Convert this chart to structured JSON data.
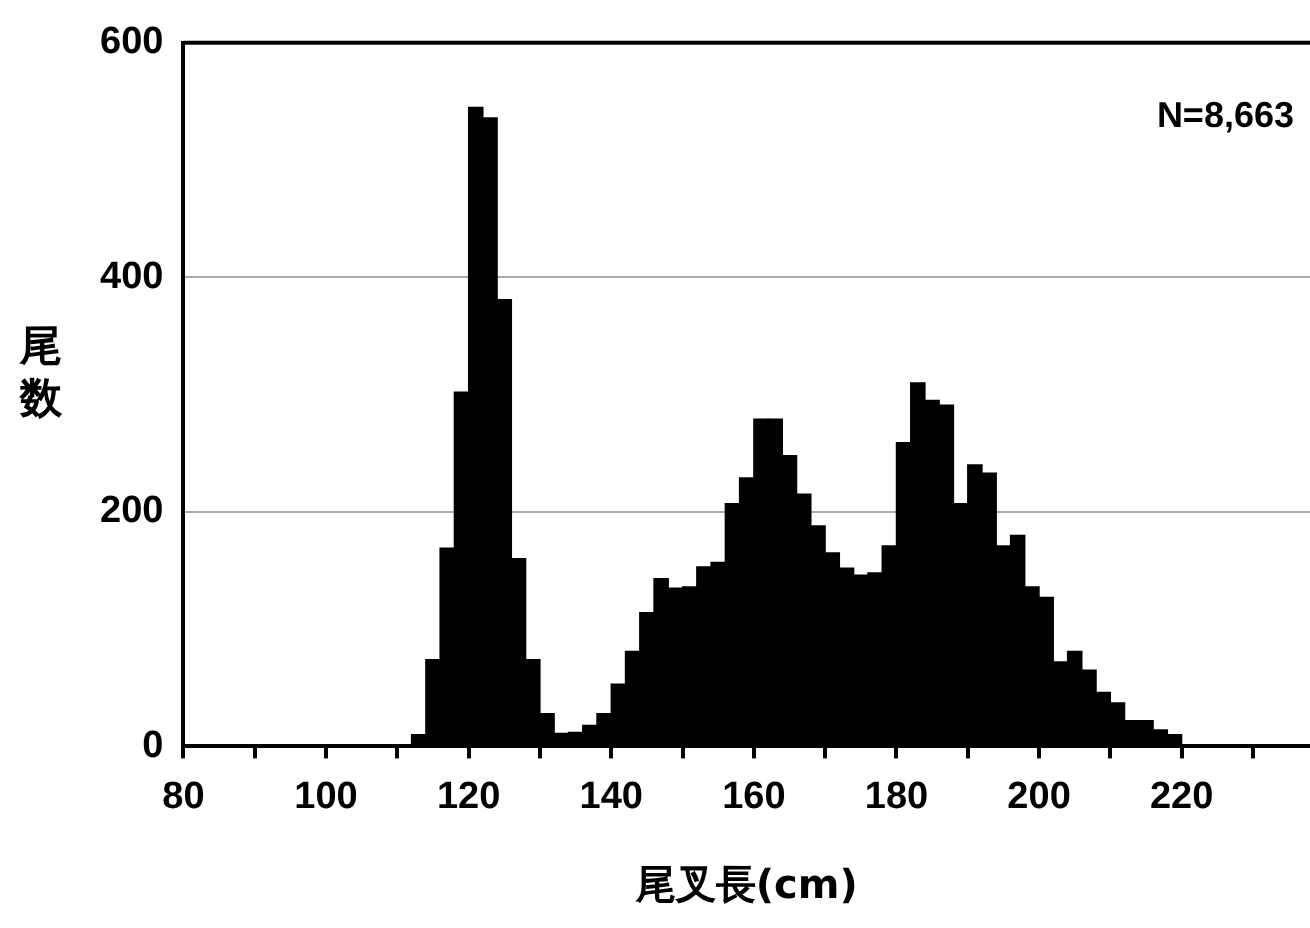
{
  "chart_data": {
    "type": "histogram",
    "xlabel": "尾叉長(cm)",
    "ylabel": "尾数",
    "bins": [
      112,
      114,
      116,
      118,
      120,
      122,
      124,
      126,
      128,
      130,
      132,
      134,
      136,
      138,
      140,
      142,
      144,
      146,
      148,
      150,
      152,
      154,
      156,
      158,
      160,
      162,
      164,
      166,
      168,
      170,
      172,
      174,
      176,
      178,
      180,
      182,
      184,
      186,
      188,
      190,
      192,
      194,
      196,
      198,
      200,
      202,
      204,
      206,
      208,
      210,
      212,
      214,
      216,
      218,
      220,
      222
    ],
    "values": [
      10,
      74,
      169,
      302,
      545,
      536,
      381,
      160,
      74,
      28,
      11,
      12,
      18,
      28,
      53,
      81,
      114,
      143,
      135,
      136,
      153,
      157,
      207,
      229,
      279,
      279,
      248,
      215,
      188,
      165,
      152,
      146,
      148,
      171,
      259,
      310,
      295,
      291,
      207,
      240,
      233,
      171,
      180,
      136,
      127,
      72,
      81,
      65,
      46,
      37,
      22,
      22,
      14,
      10,
      null
    ],
    "color": "#000000",
    "xlim": [
      80,
      238
    ],
    "xticks": [
      80,
      {
        "value": 90,
        "label": null
      },
      100,
      {
        "value": 110,
        "label": null
      },
      120,
      {
        "value": 130,
        "label": null
      },
      140,
      {
        "value": 150,
        "label": null
      },
      160,
      {
        "value": 170,
        "label": null
      },
      180,
      {
        "value": 190,
        "label": null
      },
      200,
      {
        "value": 210,
        "label": null
      },
      220,
      {
        "value": 230,
        "label": null
      }
    ],
    "ylim": [
      0,
      600
    ],
    "yticks": [
      0,
      200,
      400,
      600
    ],
    "grid": "y",
    "legend": false,
    "annotations": [
      "N=8,663"
    ]
  }
}
